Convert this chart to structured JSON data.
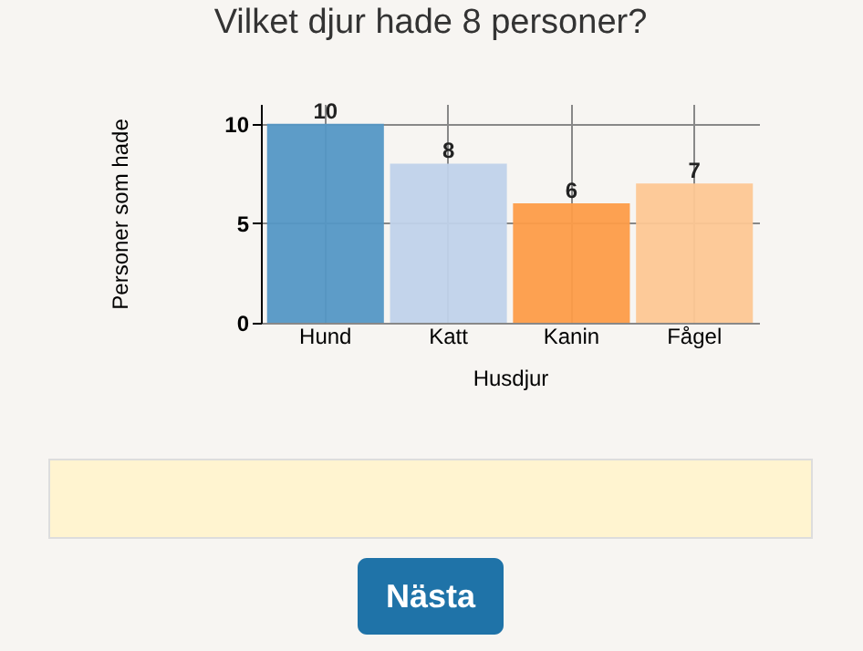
{
  "chart_data": {
    "type": "bar",
    "title": "Vilket djur hade 8 personer?",
    "xlabel": "Husdjur",
    "ylabel": "Personer som hade",
    "categories": [
      "Hund",
      "Katt",
      "Kanin",
      "Fågel"
    ],
    "values": [
      10,
      8,
      6,
      7
    ],
    "colors": [
      "#5497c5",
      "#c0d2ea",
      "#fd9c48",
      "#fdc793"
    ],
    "ylim": [
      0,
      11
    ],
    "yticks": [
      0,
      5,
      10
    ],
    "grid": true,
    "data_labels": true,
    "legend": false,
    "annotations": [
      "Nästa"
    ]
  }
}
